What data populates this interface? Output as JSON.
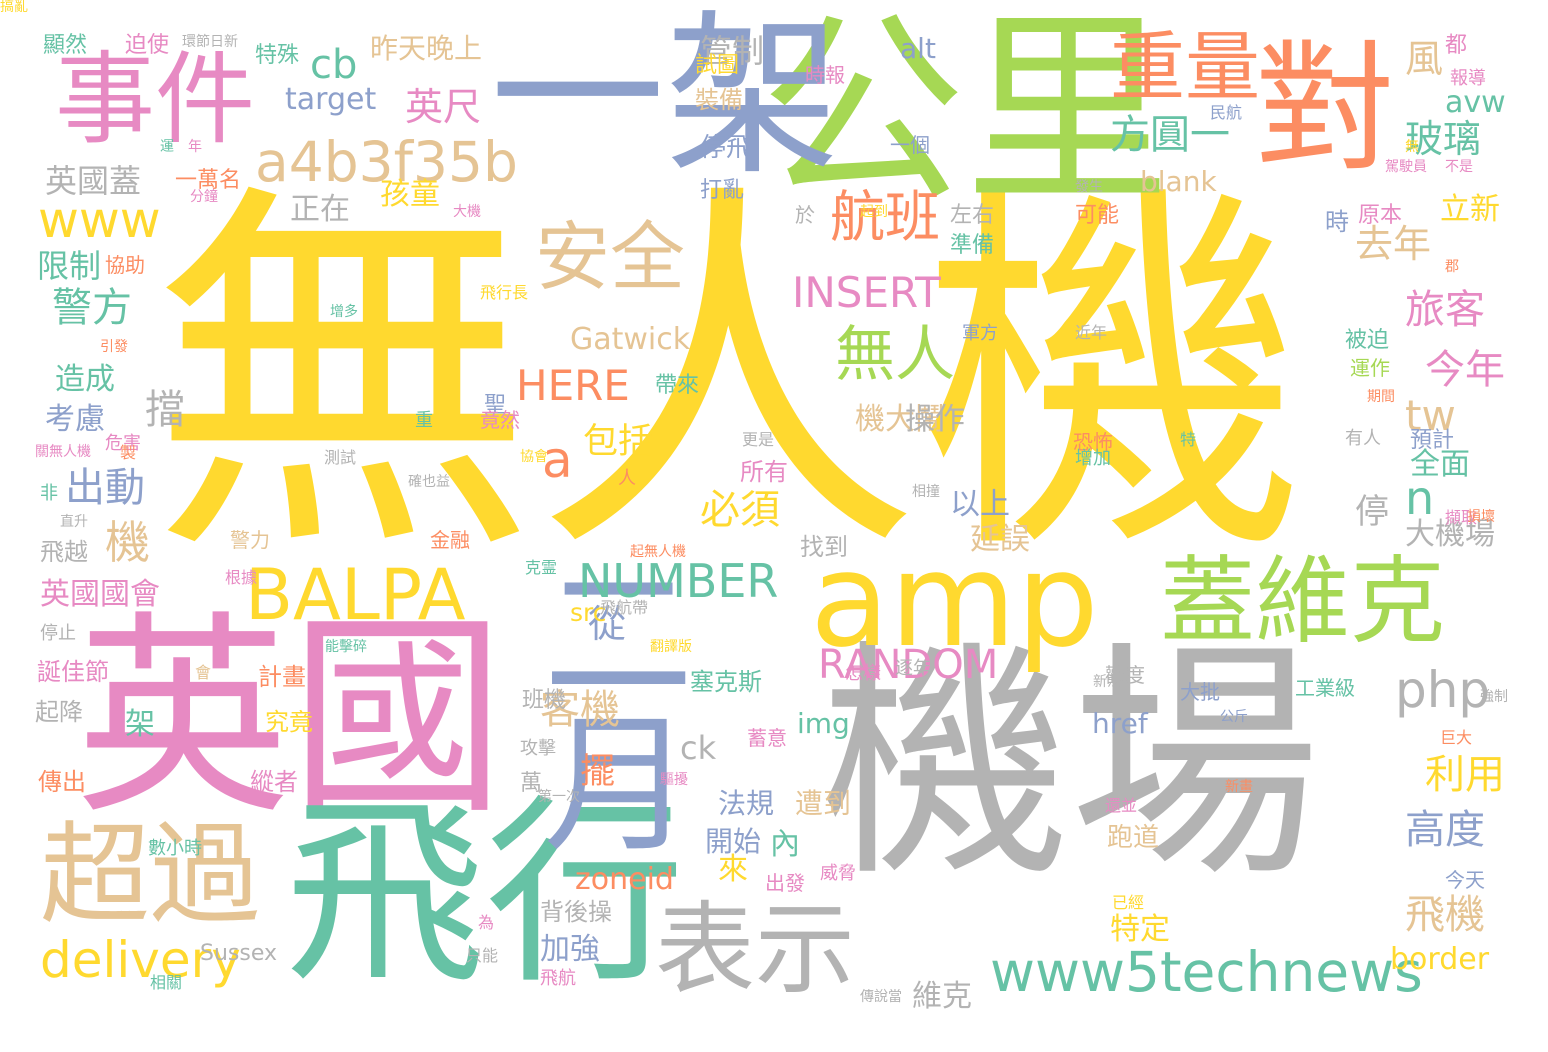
{
  "palette": {
    "yellow": "#FFD92F",
    "green": "#A6D854",
    "teal": "#66C2A5",
    "orange": "#FC8D62",
    "blue": "#8DA0CB",
    "pink": "#E78AC3",
    "tan": "#E5C494",
    "gray": "#B3B3B3"
  },
  "words": [
    {
      "text": "無人機",
      "color": "yellow",
      "vertical": false
    },
    {
      "text": "機場",
      "color": "gray",
      "vertical": false
    },
    {
      "text": "英國",
      "color": "pink",
      "vertical": false
    },
    {
      "text": "飛行",
      "color": "teal",
      "vertical": false
    },
    {
      "text": "公里",
      "color": "green",
      "vertical": false
    },
    {
      "text": "一架",
      "color": "blue",
      "vertical": false
    },
    {
      "text": "對",
      "color": "orange",
      "vertical": false
    },
    {
      "text": "amp",
      "color": "yellow",
      "vertical": false
    },
    {
      "text": "二月",
      "color": "blue",
      "vertical": true
    },
    {
      "text": "事件",
      "color": "pink",
      "vertical": false
    },
    {
      "text": "蓋維克",
      "color": "green",
      "vertical": false
    },
    {
      "text": "超過",
      "color": "tan",
      "vertical": false
    },
    {
      "text": "表示",
      "color": "gray",
      "vertical": false
    },
    {
      "text": "安全",
      "color": "tan",
      "vertical": false
    },
    {
      "text": "重量",
      "color": "orange",
      "vertical": false
    },
    {
      "text": "BALPA",
      "color": "yellow",
      "vertical": false
    },
    {
      "text": "www5technews",
      "color": "teal",
      "vertical": false
    },
    {
      "text": "a4b3f35b",
      "color": "tan",
      "vertical": false
    },
    {
      "text": "航班",
      "color": "orange",
      "vertical": false
    },
    {
      "text": "無人",
      "color": "green",
      "vertical": false
    },
    {
      "text": "delivery",
      "color": "yellow",
      "vertical": false
    },
    {
      "text": "NUMBER",
      "color": "teal",
      "vertical": false
    },
    {
      "text": "RANDOM",
      "color": "pink",
      "vertical": false
    },
    {
      "text": "INSERT",
      "color": "pink",
      "vertical": false
    },
    {
      "text": "HERE",
      "color": "orange",
      "vertical": false
    },
    {
      "text": "php",
      "color": "gray",
      "vertical": false
    },
    {
      "text": "www",
      "color": "yellow",
      "vertical": false
    },
    {
      "text": "方圓一",
      "color": "teal",
      "vertical": false
    },
    {
      "text": "英尺",
      "color": "pink",
      "vertical": false
    },
    {
      "text": "cb",
      "color": "teal",
      "vertical": false
    },
    {
      "text": "target",
      "color": "blue",
      "vertical": false
    },
    {
      "text": "警方",
      "color": "teal",
      "vertical": false
    },
    {
      "text": "出動",
      "color": "blue",
      "vertical": false
    },
    {
      "text": "英國蓋",
      "color": "gray",
      "vertical": false
    },
    {
      "text": "限制",
      "color": "teal",
      "vertical": false
    },
    {
      "text": "正在",
      "color": "gray",
      "vertical": false
    },
    {
      "text": "孩童",
      "color": "yellow",
      "vertical": false
    },
    {
      "text": "管制",
      "color": "gray",
      "vertical": false
    },
    {
      "text": "昨天晚上",
      "color": "tan",
      "vertical": false
    },
    {
      "text": "alt",
      "color": "blue",
      "vertical": false
    },
    {
      "text": "風",
      "color": "tan",
      "vertical": false
    },
    {
      "text": "玻璃",
      "color": "teal",
      "vertical": false
    },
    {
      "text": "avw",
      "color": "teal",
      "vertical": false
    },
    {
      "text": "立新",
      "color": "yellow",
      "vertical": false
    },
    {
      "text": "去年",
      "color": "tan",
      "vertical": false
    },
    {
      "text": "旅客",
      "color": "pink",
      "vertical": false
    },
    {
      "text": "今年",
      "color": "pink",
      "vertical": false
    },
    {
      "text": "tw",
      "color": "tan",
      "vertical": false
    },
    {
      "text": "n",
      "color": "teal",
      "vertical": false
    },
    {
      "text": "全面",
      "color": "teal",
      "vertical": false
    },
    {
      "text": "停",
      "color": "gray",
      "vertical": false
    },
    {
      "text": "大機場",
      "color": "gray",
      "vertical": false
    },
    {
      "text": "利用",
      "color": "yellow",
      "vertical": false
    },
    {
      "text": "高度",
      "color": "blue",
      "vertical": false
    },
    {
      "text": "飛機",
      "color": "tan",
      "vertical": false
    },
    {
      "text": "border",
      "color": "yellow",
      "vertical": false
    },
    {
      "text": "blank",
      "color": "tan",
      "vertical": false
    },
    {
      "text": "Gatwick",
      "color": "tan",
      "vertical": false
    },
    {
      "text": "a",
      "color": "orange",
      "vertical": false
    },
    {
      "text": "包括",
      "color": "yellow",
      "vertical": false
    },
    {
      "text": "擋",
      "color": "gray",
      "vertical": false
    },
    {
      "text": "機大鬧",
      "color": "tan",
      "vertical": false
    },
    {
      "text": "操作",
      "color": "gray",
      "vertical": false
    },
    {
      "text": "以上",
      "color": "blue",
      "vertical": false
    },
    {
      "text": "延誤",
      "color": "tan",
      "vertical": false
    },
    {
      "text": "必須",
      "color": "yellow",
      "vertical": false
    },
    {
      "text": "從",
      "color": "blue",
      "vertical": false
    },
    {
      "text": "客機",
      "color": "tan",
      "vertical": false
    },
    {
      "text": "機",
      "color": "tan",
      "vertical": false
    },
    {
      "text": "造成",
      "color": "teal",
      "vertical": false
    },
    {
      "text": "考慮",
      "color": "blue",
      "vertical": false
    },
    {
      "text": "英國國會",
      "color": "pink",
      "vertical": false
    },
    {
      "text": "飛越",
      "color": "gray",
      "vertical": false
    },
    {
      "text": "誕佳節",
      "color": "pink",
      "vertical": false
    },
    {
      "text": "起降",
      "color": "gray",
      "vertical": false
    },
    {
      "text": "傳出",
      "color": "orange",
      "vertical": false
    },
    {
      "text": "計畫",
      "color": "orange",
      "vertical": false
    },
    {
      "text": "究竟",
      "color": "yellow",
      "vertical": false
    },
    {
      "text": "縱者",
      "color": "pink",
      "vertical": false
    },
    {
      "text": "架",
      "color": "teal",
      "vertical": false
    },
    {
      "text": "img",
      "color": "teal",
      "vertical": false
    },
    {
      "text": "href",
      "color": "blue",
      "vertical": false
    },
    {
      "text": "ck",
      "color": "gray",
      "vertical": false
    },
    {
      "text": "擺",
      "color": "orange",
      "vertical": false
    },
    {
      "text": "塞克斯",
      "color": "teal",
      "vertical": false
    },
    {
      "text": "法規",
      "color": "blue",
      "vertical": false
    },
    {
      "text": "遭到",
      "color": "tan",
      "vertical": false
    },
    {
      "text": "開始",
      "color": "blue",
      "vertical": false
    },
    {
      "text": "跑道",
      "color": "tan",
      "vertical": false
    },
    {
      "text": "來",
      "color": "yellow",
      "vertical": false
    },
    {
      "text": "內",
      "color": "teal",
      "vertical": false
    },
    {
      "text": "zoneid",
      "color": "orange",
      "vertical": false
    },
    {
      "text": "加強",
      "color": "blue",
      "vertical": false
    },
    {
      "text": "背後操",
      "color": "gray",
      "vertical": false
    },
    {
      "text": "特定",
      "color": "yellow",
      "vertical": false
    },
    {
      "text": "維克",
      "color": "gray",
      "vertical": false
    },
    {
      "text": "src",
      "color": "yellow",
      "vertical": false
    },
    {
      "text": "班機",
      "color": "gray",
      "vertical": false
    },
    {
      "text": "萬",
      "color": "gray",
      "vertical": false
    },
    {
      "text": "左右",
      "color": "gray",
      "vertical": false
    },
    {
      "text": "準備",
      "color": "teal",
      "vertical": false
    },
    {
      "text": "所有",
      "color": "pink",
      "vertical": false
    },
    {
      "text": "找到",
      "color": "gray",
      "vertical": false
    },
    {
      "text": "於",
      "color": "gray",
      "vertical": false
    },
    {
      "text": "時",
      "color": "blue",
      "vertical": false
    },
    {
      "text": "原本",
      "color": "pink",
      "vertical": false
    },
    {
      "text": "可能",
      "color": "orange",
      "vertical": false
    },
    {
      "text": "被迫",
      "color": "teal",
      "vertical": false
    },
    {
      "text": "運作",
      "color": "green",
      "vertical": false
    },
    {
      "text": "恐怖",
      "color": "orange",
      "vertical": false
    },
    {
      "text": "增加",
      "color": "teal",
      "vertical": false
    },
    {
      "text": "有人",
      "color": "gray",
      "vertical": false
    },
    {
      "text": "預計",
      "color": "blue",
      "vertical": false
    },
    {
      "text": "歡度",
      "color": "gray",
      "vertical": false
    },
    {
      "text": "大批",
      "color": "blue",
      "vertical": false
    },
    {
      "text": "工業級",
      "color": "teal",
      "vertical": false
    },
    {
      "text": "今天",
      "color": "blue",
      "vertical": false
    },
    {
      "text": "停飛",
      "color": "blue",
      "vertical": false
    },
    {
      "text": "打亂",
      "color": "blue",
      "vertical": false
    },
    {
      "text": "裝備",
      "color": "tan",
      "vertical": false
    },
    {
      "text": "試圖",
      "color": "yellow",
      "vertical": false
    },
    {
      "text": "一個",
      "color": "blue",
      "vertical": false
    },
    {
      "text": "時報",
      "color": "pink",
      "vertical": false
    },
    {
      "text": "特殊",
      "color": "teal",
      "vertical": false
    },
    {
      "text": "迫使",
      "color": "pink",
      "vertical": false
    },
    {
      "text": "顯然",
      "color": "teal",
      "vertical": false
    },
    {
      "text": "一萬名",
      "color": "orange",
      "vertical": false
    },
    {
      "text": "都",
      "color": "pink",
      "vertical": false
    },
    {
      "text": "報導",
      "color": "pink",
      "vertical": false
    },
    {
      "text": "民航",
      "color": "blue",
      "vertical": false
    },
    {
      "text": "軍方",
      "color": "blue",
      "vertical": false
    },
    {
      "text": "近年",
      "color": "gray",
      "vertical": false
    },
    {
      "text": "聖",
      "color": "blue",
      "vertical": false
    },
    {
      "text": "帶來",
      "color": "teal",
      "vertical": false
    },
    {
      "text": "竟然",
      "color": "pink",
      "vertical": false
    },
    {
      "text": "危害",
      "color": "pink",
      "vertical": false
    },
    {
      "text": "協助",
      "color": "orange",
      "vertical": false
    },
    {
      "text": "警力",
      "color": "tan",
      "vertical": false
    },
    {
      "text": "金融",
      "color": "orange",
      "vertical": false
    },
    {
      "text": "出發",
      "color": "pink",
      "vertical": false
    },
    {
      "text": "威脅",
      "color": "pink",
      "vertical": false
    },
    {
      "text": "擷取",
      "color": "pink",
      "vertical": false
    },
    {
      "text": "更是",
      "color": "gray",
      "vertical": false
    },
    {
      "text": "停止",
      "color": "gray",
      "vertical": false
    },
    {
      "text": "攻擊",
      "color": "gray",
      "vertical": false
    },
    {
      "text": "蓄意",
      "color": "pink",
      "vertical": false
    },
    {
      "text": "怎樣",
      "color": "pink",
      "vertical": false
    },
    {
      "text": "逐年",
      "color": "gray",
      "vertical": false
    },
    {
      "text": "數小時",
      "color": "teal",
      "vertical": false
    },
    {
      "text": "Sussex",
      "color": "gray",
      "vertical": false
    },
    {
      "text": "飛航",
      "color": "pink",
      "vertical": false
    },
    {
      "text": "只能",
      "color": "gray",
      "vertical": false
    },
    {
      "text": "相關",
      "color": "teal",
      "vertical": false
    },
    {
      "text": "已經",
      "color": "yellow",
      "vertical": false
    },
    {
      "text": "還並",
      "color": "pink",
      "vertical": false
    },
    {
      "text": "新法",
      "color": "gray",
      "vertical": false
    },
    {
      "text": "巨大",
      "color": "orange",
      "vertical": false
    },
    {
      "text": "公斤",
      "color": "blue",
      "vertical": false
    },
    {
      "text": "飛行長",
      "color": "yellow",
      "vertical": false
    },
    {
      "text": "測試",
      "color": "gray",
      "vertical": false
    },
    {
      "text": "非",
      "color": "teal",
      "vertical": false
    },
    {
      "text": "人",
      "color": "orange",
      "vertical": false
    },
    {
      "text": "重",
      "color": "teal",
      "vertical": false
    },
    {
      "text": "為",
      "color": "pink",
      "vertical": false
    },
    {
      "text": "克霊",
      "color": "teal",
      "vertical": false
    },
    {
      "text": "大機",
      "color": "pink",
      "vertical": false
    },
    {
      "text": "分鐘",
      "color": "pink",
      "vertical": false
    },
    {
      "text": "年",
      "color": "pink",
      "vertical": false
    },
    {
      "text": "運",
      "color": "teal",
      "vertical": false
    },
    {
      "text": "飛航帶",
      "color": "gray",
      "vertical": false
    },
    {
      "text": "根據",
      "color": "pink",
      "vertical": false
    },
    {
      "text": "第一次",
      "color": "gray",
      "vertical": false
    },
    {
      "text": "發生",
      "color": "gray",
      "vertical": false
    },
    {
      "text": "駕駛員",
      "color": "pink",
      "vertical": false
    },
    {
      "text": "不是",
      "color": "pink",
      "vertical": false
    },
    {
      "text": "起到",
      "color": "yellow",
      "vertical": false
    },
    {
      "text": "期間",
      "color": "orange",
      "vertical": false
    },
    {
      "text": "特",
      "color": "teal",
      "vertical": false
    },
    {
      "text": "無",
      "color": "yellow",
      "vertical": false
    },
    {
      "text": "引發",
      "color": "orange",
      "vertical": false
    },
    {
      "text": "損壞",
      "color": "orange",
      "vertical": false
    },
    {
      "text": "翻譯版",
      "color": "yellow",
      "vertical": false
    },
    {
      "text": "能擊碎",
      "color": "teal",
      "vertical": false
    },
    {
      "text": "會",
      "color": "tan",
      "vertical": false
    },
    {
      "text": "製",
      "color": "orange",
      "vertical": false
    },
    {
      "text": "關無人機",
      "color": "pink",
      "vertical": false
    },
    {
      "text": "直升",
      "color": "gray",
      "vertical": false
    },
    {
      "text": "驅擾",
      "color": "pink",
      "vertical": false
    },
    {
      "text": "起無人機",
      "color": "orange",
      "vertical": false
    },
    {
      "text": "協會",
      "color": "yellow",
      "vertical": false
    },
    {
      "text": "郡",
      "color": "orange",
      "vertical": false
    },
    {
      "text": "增多",
      "color": "teal",
      "vertical": false
    },
    {
      "text": "環節日新",
      "color": "gray",
      "vertical": false
    },
    {
      "text": "確也益",
      "color": "gray",
      "vertical": false
    },
    {
      "text": "相撞",
      "color": "gray",
      "vertical": false
    },
    {
      "text": "強制",
      "color": "gray",
      "vertical": false
    },
    {
      "text": "傳說當",
      "color": "gray",
      "vertical": false
    },
    {
      "text": "新畫",
      "color": "orange",
      "vertical": false
    },
    {
      "text": "搞亂",
      "color": "yellow",
      "vertical": false
    }
  ]
}
